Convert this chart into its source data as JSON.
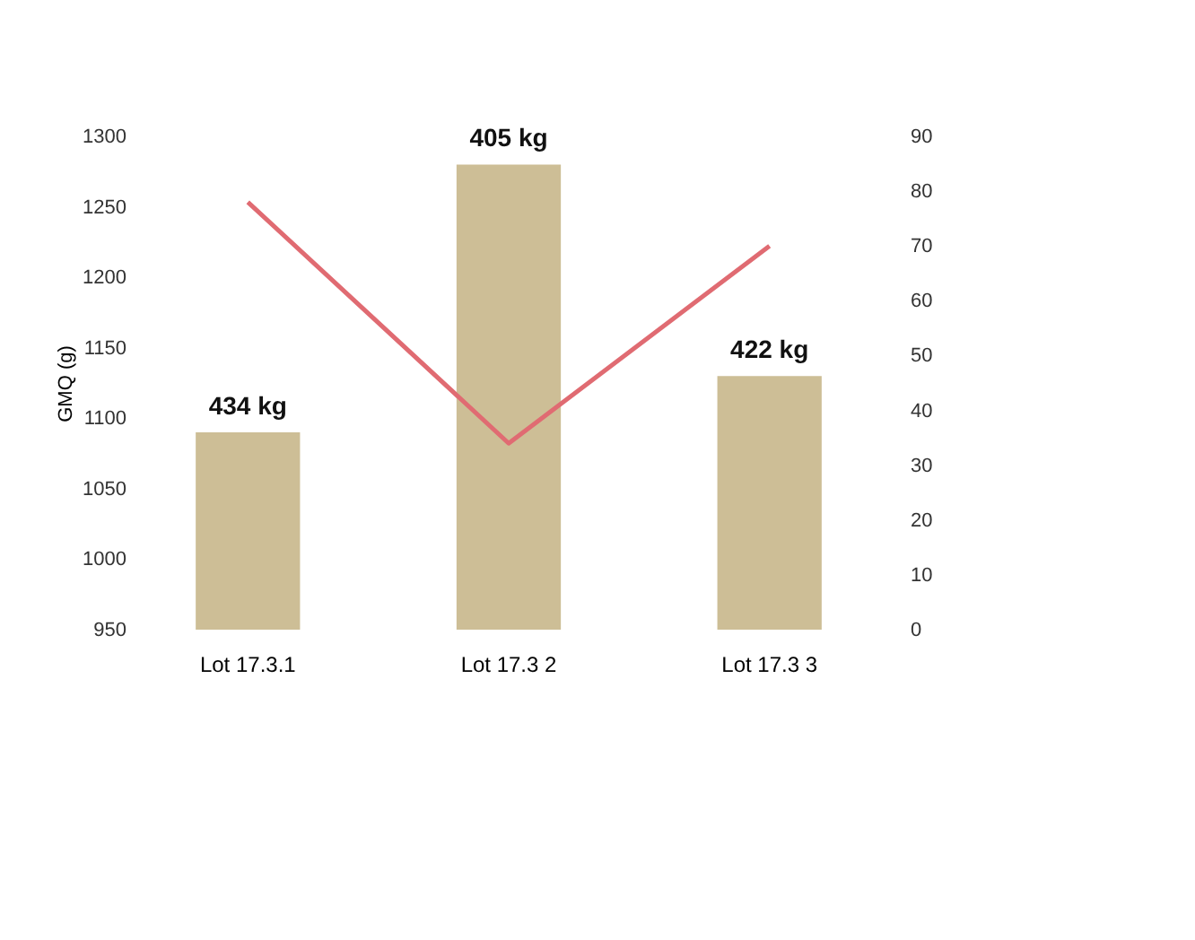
{
  "chart_data": {
    "type": "bar",
    "ylabel": "GMQ (g)",
    "categories": [
      "Lot 17.3.1",
      "Lot 17.3 2",
      "Lot 17.3 3"
    ],
    "series": [
      {
        "color": "#cdbe96",
        "values": [
          1090,
          1280,
          1130
        ]
      },
      {
        "type": "line",
        "axis": "y2",
        "color": "#e06b72",
        "values": [
          78,
          34,
          70
        ]
      }
    ],
    "annotations": [
      {
        "text": "434 kg",
        "x": "Lot 17.3.1",
        "y": 1090
      },
      {
        "text": "405 kg",
        "x": "Lot 17.3 2",
        "y": 1280
      },
      {
        "text": "422 kg",
        "x": "Lot 17.3 3",
        "y": 1130
      }
    ],
    "ylim": [
      950,
      1300
    ],
    "yticks": [
      950,
      1000,
      1050,
      1100,
      1150,
      1200,
      1250,
      1300
    ],
    "y2lim": [
      0,
      90
    ],
    "y2ticks": [
      0,
      10,
      20,
      30,
      40,
      50,
      60,
      70,
      80,
      90
    ]
  }
}
